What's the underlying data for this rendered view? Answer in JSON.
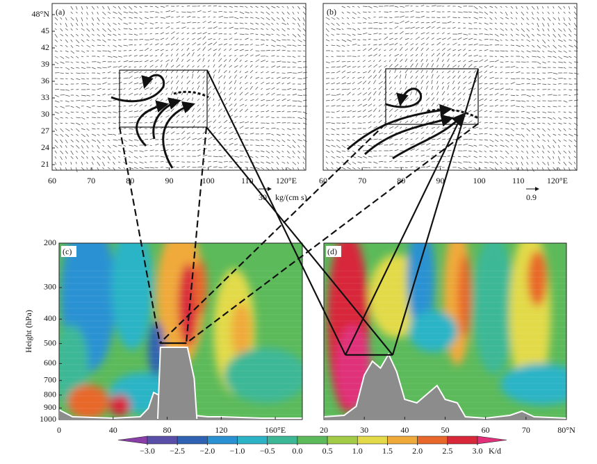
{
  "panels": [
    {
      "label": "(a)",
      "type": "vector",
      "xlim": [
        60,
        125
      ],
      "ylim": [
        20,
        50
      ],
      "xticks": [
        60,
        70,
        80,
        90,
        100,
        110,
        {
          "value": 120,
          "label": "120°E"
        }
      ],
      "yticks": [
        21,
        24,
        27,
        30,
        33,
        36,
        39,
        42,
        45,
        {
          "value": 48,
          "label": "48°N"
        }
      ],
      "reference_vector": {
        "label": "30",
        "unit": "kg/(cm s)"
      }
    },
    {
      "label": "(b)",
      "type": "vector",
      "xlim": [
        60,
        125
      ],
      "ylim": [
        20,
        50
      ],
      "xticks": [
        60,
        70,
        80,
        90,
        100,
        110,
        {
          "value": 120,
          "label": "120°E"
        }
      ],
      "reference_vector": {
        "label": "0.9"
      }
    },
    {
      "label": "(c)",
      "type": "section",
      "xlim": [
        0,
        180
      ],
      "ylim": [
        1000,
        200
      ],
      "ylog": true,
      "ylabel": "Height (hPa)",
      "xticks": [
        0,
        40,
        80,
        120,
        {
          "value": 160,
          "label": "160°E"
        }
      ],
      "yticks": [
        200,
        300,
        400,
        500,
        600,
        700,
        800,
        900,
        1000
      ]
    },
    {
      "label": "(d)",
      "type": "section",
      "xlim": [
        20,
        80
      ],
      "ylim": [
        1000,
        200
      ],
      "ylog": true,
      "xticks": [
        20,
        30,
        40,
        50,
        60,
        70,
        {
          "value": 80,
          "label": "80°N"
        }
      ]
    }
  ],
  "colorbar": {
    "unit": "K/d",
    "ticks": [
      {
        "value": -3.0,
        "label": "−3.0"
      },
      {
        "value": -2.5,
        "label": "−2.5"
      },
      {
        "value": -2.0,
        "label": "−2.0"
      },
      {
        "value": -1.0,
        "label": "−1.0"
      },
      {
        "value": -0.5,
        "label": "−0.5"
      },
      {
        "value": 0,
        "label": "0.0"
      },
      0.5,
      {
        "value": 1.0,
        "label": "1.0"
      },
      1.5,
      {
        "value": 2.0,
        "label": "2.0"
      },
      2.5,
      {
        "value": 3.0,
        "label": "3.0"
      }
    ],
    "colors": [
      "#8a3fa8",
      "#5a4fa8",
      "#2f62b2",
      "#2a92d2",
      "#2cb4c6",
      "#3cb896",
      "#5cba5a",
      "#a2cc48",
      "#e2da48",
      "#f0aa3a",
      "#e8682c",
      "#d8283a",
      "#e0307a"
    ]
  }
}
